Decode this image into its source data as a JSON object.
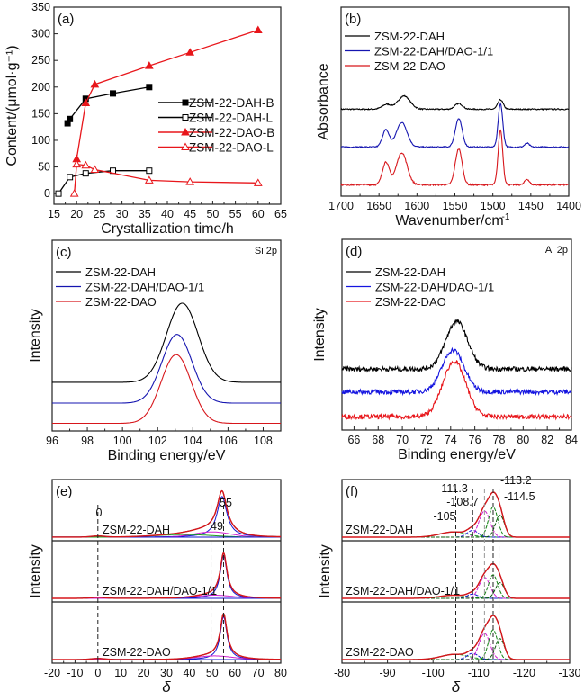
{
  "chart_data": [
    {
      "id": "a",
      "type": "line",
      "panel_label": "(a)",
      "xlabel": "Crystallization time/h",
      "ylabel": "Content/(μmol·g⁻¹)",
      "xlim": [
        15,
        65
      ],
      "ylim": [
        -20,
        350
      ],
      "xticks": [
        15,
        20,
        25,
        30,
        35,
        40,
        45,
        50,
        55,
        60,
        65
      ],
      "yticks": [
        0,
        50,
        100,
        150,
        200,
        250,
        300,
        350
      ],
      "legend_position": "center-right",
      "series": [
        {
          "name": "ZSM-22-DAH-B",
          "color": "#000000",
          "marker": "square-filled",
          "x": [
            18,
            18.5,
            22,
            28,
            36
          ],
          "y": [
            132,
            140,
            178,
            188,
            200
          ]
        },
        {
          "name": "ZSM-22-DAH-L",
          "color": "#000000",
          "marker": "square-open",
          "x": [
            16,
            18.5,
            22,
            28,
            36
          ],
          "y": [
            0,
            31,
            38,
            43,
            43
          ]
        },
        {
          "name": "ZSM-22-DAO-B",
          "color": "#e8161b",
          "marker": "triangle-filled",
          "x": [
            20,
            22,
            24,
            36,
            45,
            60
          ],
          "y": [
            65,
            170,
            205,
            240,
            265,
            307
          ]
        },
        {
          "name": "ZSM-22-DAO-L",
          "color": "#e8161b",
          "marker": "triangle-open",
          "x": [
            19.5,
            20,
            22,
            24,
            36,
            45,
            60
          ],
          "y": [
            0,
            55,
            53,
            45,
            25,
            22,
            20
          ]
        }
      ]
    },
    {
      "id": "b",
      "type": "line",
      "panel_label": "(b)",
      "xlabel": "Wavenumber/cm",
      "xlabel_sup": "-1",
      "ylabel": "Absorbance",
      "xlim": [
        1700,
        1400
      ],
      "ylim": [
        0,
        1
      ],
      "xticks": [
        1700,
        1650,
        1600,
        1550,
        1500,
        1450,
        1400
      ],
      "legend_position": "top-left",
      "series": [
        {
          "name": "ZSM-22-DAH",
          "color": "#000000",
          "offset": 0.46,
          "noise": 0.003,
          "peaks": [
            {
              "center": 1640,
              "height": 0.025,
              "width": 6
            },
            {
              "center": 1617,
              "height": 0.07,
              "width": 8
            },
            {
              "center": 1545,
              "height": 0.03,
              "width": 5
            },
            {
              "center": 1490,
              "height": 0.05,
              "width": 3.5
            }
          ]
        },
        {
          "name": "ZSM-22-DAH/DAO-1/1",
          "color": "#1515b0",
          "offset": 0.26,
          "noise": 0.003,
          "peaks": [
            {
              "center": 1641,
              "height": 0.09,
              "width": 4.5
            },
            {
              "center": 1620,
              "height": 0.13,
              "width": 7
            },
            {
              "center": 1545,
              "height": 0.15,
              "width": 4.5
            },
            {
              "center": 1490,
              "height": 0.23,
              "width": 3
            },
            {
              "center": 1455,
              "height": 0.02,
              "width": 3
            }
          ]
        },
        {
          "name": "ZSM-22-DAO",
          "color": "#d7161b",
          "offset": 0.06,
          "noise": 0.004,
          "peaks": [
            {
              "center": 1641,
              "height": 0.12,
              "width": 4.5
            },
            {
              "center": 1620,
              "height": 0.17,
              "width": 7
            },
            {
              "center": 1545,
              "height": 0.19,
              "width": 4.5
            },
            {
              "center": 1490,
              "height": 0.29,
              "width": 3
            },
            {
              "center": 1455,
              "height": 0.03,
              "width": 3
            }
          ]
        }
      ]
    },
    {
      "id": "c",
      "type": "line",
      "panel_label": "(c)",
      "annotation": "Si 2p",
      "xlabel": "Binding energy/eV",
      "ylabel": "Intensity",
      "xlim": [
        96,
        109
      ],
      "ylim": [
        0,
        1
      ],
      "xticks": [
        96,
        98,
        100,
        102,
        104,
        106,
        108
      ],
      "legend_position": "top-left",
      "series": [
        {
          "name": "ZSM-22-DAH",
          "color": "#000000",
          "offset": 0.255,
          "noise": 0,
          "peaks": [
            {
              "center": 103.4,
              "height": 0.415,
              "width": 0.9
            }
          ]
        },
        {
          "name": "ZSM-22-DAH/DAO-1/1",
          "color": "#1515b0",
          "offset": 0.146,
          "noise": 0,
          "peaks": [
            {
              "center": 103.1,
              "height": 0.36,
              "width": 0.85
            }
          ]
        },
        {
          "name": "ZSM-22-DAO",
          "color": "#d7161b",
          "offset": 0.04,
          "noise": 0,
          "peaks": [
            {
              "center": 103.05,
              "height": 0.36,
              "width": 0.85
            }
          ]
        }
      ]
    },
    {
      "id": "d",
      "type": "line",
      "panel_label": "(d)",
      "annotation": "Al 2p",
      "xlabel": "Binding energy/eV",
      "ylabel": "Intensity",
      "xlim": [
        65,
        84
      ],
      "ylim": [
        0,
        1
      ],
      "xticks": [
        66,
        68,
        70,
        72,
        74,
        76,
        78,
        80,
        82,
        84
      ],
      "legend_position": "top-left",
      "series": [
        {
          "name": "ZSM-22-DAH",
          "color": "#000000",
          "offset": 0.32,
          "noise": 0.012,
          "peaks": [
            {
              "center": 74.5,
              "height": 0.25,
              "width": 0.9
            }
          ]
        },
        {
          "name": "ZSM-22-DAH/DAO-1/1",
          "color": "#1515e0",
          "offset": 0.2,
          "noise": 0.012,
          "peaks": [
            {
              "center": 74.2,
              "height": 0.22,
              "width": 0.9
            }
          ]
        },
        {
          "name": "ZSM-22-DAO",
          "color": "#e8161b",
          "offset": 0.07,
          "noise": 0.012,
          "peaks": [
            {
              "center": 74.3,
              "height": 0.29,
              "width": 0.95
            }
          ]
        }
      ]
    },
    {
      "id": "e",
      "type": "line",
      "panel_label": "(e)",
      "xlabel": "δ",
      "ylabel": "Intensity",
      "xlim": [
        -20,
        80
      ],
      "ylim": [
        0,
        1
      ],
      "xticks": [
        -20,
        -10,
        0,
        10,
        20,
        30,
        40,
        50,
        60,
        70,
        80
      ],
      "markers": [
        {
          "x": 0,
          "label": "0"
        },
        {
          "x": 49.5,
          "label": "49"
        },
        {
          "x": 55,
          "label": "55"
        }
      ],
      "subpanels": [
        {
          "name": "ZSM-22-DAH",
          "components": [
            {
              "center": 54.3,
              "height": 0.78,
              "width": 2.6,
              "shape": "lorentz",
              "color": "#1515d0"
            },
            {
              "center": 50,
              "height": 0.1,
              "width": 8,
              "shape": "gauss",
              "color": "#d020d0"
            },
            {
              "center": 38,
              "height": 0.05,
              "width": 12,
              "shape": "gauss",
              "color": "#20a020"
            },
            {
              "center": 0,
              "height": 0.02,
              "width": 3,
              "shape": "gauss",
              "color": "#1515d0"
            }
          ]
        },
        {
          "name": "ZSM-22-DAH/DAO-1/1",
          "components": [
            {
              "center": 55,
              "height": 0.82,
              "width": 1.8,
              "shape": "lorentz",
              "color": "#1515d0"
            },
            {
              "center": 51,
              "height": 0.06,
              "width": 8,
              "shape": "gauss",
              "color": "#d020d0"
            },
            {
              "center": 0,
              "height": 0.02,
              "width": 3,
              "shape": "gauss",
              "color": "#1515d0"
            }
          ]
        },
        {
          "name": "ZSM-22-DAO",
          "components": [
            {
              "center": 55,
              "height": 0.82,
              "width": 1.8,
              "shape": "lorentz",
              "color": "#1515d0"
            },
            {
              "center": 51,
              "height": 0.07,
              "width": 8,
              "shape": "gauss",
              "color": "#d020d0"
            },
            {
              "center": 0,
              "height": 0.02,
              "width": 3,
              "shape": "gauss",
              "color": "#1515d0"
            }
          ]
        }
      ]
    },
    {
      "id": "f",
      "type": "line",
      "panel_label": "(f)",
      "xlabel": "δ",
      "ylabel": "Intensity",
      "xlim": [
        -80,
        -130
      ],
      "ylim": [
        0,
        1
      ],
      "xticks": [
        -80,
        -90,
        -100,
        -110,
        -120,
        -130
      ],
      "markers": [
        {
          "x": -105,
          "label": "-105"
        },
        {
          "x": -108.7,
          "label": "-108.7"
        },
        {
          "x": -111.3,
          "label": "-111.3"
        },
        {
          "x": -113.2,
          "label": "-113.2"
        },
        {
          "x": -114.5,
          "label": "-114.5"
        }
      ],
      "subpanels": [
        {
          "name": "ZSM-22-DAH",
          "components": [
            {
              "center": -104.5,
              "height": 0.1,
              "width": 3,
              "shape": "gauss",
              "color": "#20a020"
            },
            {
              "center": -108.7,
              "height": 0.13,
              "width": 1.2,
              "shape": "gauss",
              "color": "#1515d0"
            },
            {
              "center": -111.3,
              "height": 0.5,
              "width": 1.2,
              "shape": "gauss",
              "color": "#d020d0"
            },
            {
              "center": -113.2,
              "height": 0.58,
              "width": 1.0,
              "shape": "gauss",
              "color": "#108010"
            },
            {
              "center": -114.7,
              "height": 0.42,
              "width": 1.0,
              "shape": "gauss",
              "color": "#0a5a0a"
            }
          ]
        },
        {
          "name": "ZSM-22-DAH/DAO-1/1",
          "components": [
            {
              "center": -104.5,
              "height": 0.06,
              "width": 3,
              "shape": "gauss",
              "color": "#20a020"
            },
            {
              "center": -108.7,
              "height": 0.08,
              "width": 1.2,
              "shape": "gauss",
              "color": "#1515d0"
            },
            {
              "center": -111.3,
              "height": 0.4,
              "width": 1.2,
              "shape": "gauss",
              "color": "#d020d0"
            },
            {
              "center": -113.2,
              "height": 0.45,
              "width": 1.0,
              "shape": "gauss",
              "color": "#108010"
            },
            {
              "center": -114.7,
              "height": 0.3,
              "width": 1.0,
              "shape": "gauss",
              "color": "#0a5a0a"
            }
          ]
        },
        {
          "name": "ZSM-22-DAO",
          "components": [
            {
              "center": -104.8,
              "height": 0.1,
              "width": 3,
              "shape": "gauss",
              "color": "#20a020"
            },
            {
              "center": -108.7,
              "height": 0.12,
              "width": 1.2,
              "shape": "gauss",
              "color": "#1515d0"
            },
            {
              "center": -111.3,
              "height": 0.5,
              "width": 1.2,
              "shape": "gauss",
              "color": "#d020d0"
            },
            {
              "center": -113.2,
              "height": 0.57,
              "width": 1.0,
              "shape": "gauss",
              "color": "#108010"
            },
            {
              "center": -114.7,
              "height": 0.4,
              "width": 1.0,
              "shape": "gauss",
              "color": "#0a5a0a"
            }
          ]
        }
      ]
    }
  ]
}
